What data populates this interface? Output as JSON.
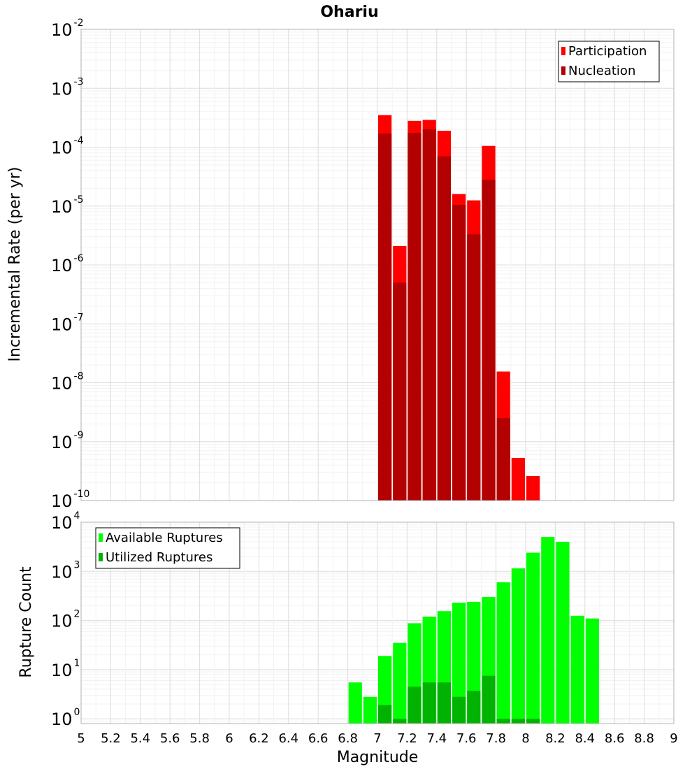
{
  "chart_data": [
    {
      "type": "bar",
      "title": "Ohariu",
      "ylabel": "Incremental Rate (per yr)",
      "xlabel": "",
      "yscale": "log",
      "ylim": [
        1e-10,
        0.01
      ],
      "xlim": [
        5,
        9
      ],
      "grid": true,
      "legend_position": "top-right",
      "y_ticks": [
        {
          "base": "10",
          "exp": "-2"
        },
        {
          "base": "10",
          "exp": "-3"
        },
        {
          "base": "10",
          "exp": "-4"
        },
        {
          "base": "10",
          "exp": "-5"
        },
        {
          "base": "10",
          "exp": "-6"
        },
        {
          "base": "10",
          "exp": "-7"
        },
        {
          "base": "10",
          "exp": "-8"
        },
        {
          "base": "10",
          "exp": "-9"
        },
        {
          "base": "10",
          "exp": "-10"
        }
      ],
      "x": [
        7.05,
        7.15,
        7.25,
        7.35,
        7.45,
        7.55,
        7.65,
        7.75,
        7.85,
        7.95,
        8.05
      ],
      "series": [
        {
          "name": "Participation",
          "color": "#ff0000",
          "values": [
            0.00035,
            2.1e-06,
            0.00028,
            0.00029,
            0.00019,
            1.6e-05,
            1.25e-05,
            0.000105,
            1.55e-08,
            5.3e-10,
            2.6e-10
          ]
        },
        {
          "name": "Nucleation",
          "color": "#b30000",
          "values": [
            0.00017,
            5e-07,
            0.000175,
            0.0002,
            7e-05,
            1.05e-05,
            3.3e-06,
            2.8e-05,
            2.5e-09,
            null,
            null
          ]
        }
      ]
    },
    {
      "type": "bar",
      "title": "",
      "ylabel": "Rupture Count",
      "xlabel": "Magnitude",
      "yscale": "log",
      "ylim": [
        0.8,
        10000
      ],
      "xlim": [
        5,
        9
      ],
      "grid": true,
      "legend_position": "top-left",
      "y_ticks": [
        {
          "base": "10",
          "exp": "4"
        },
        {
          "base": "10",
          "exp": "3"
        },
        {
          "base": "10",
          "exp": "2"
        },
        {
          "base": "10",
          "exp": "1"
        },
        {
          "base": "10",
          "exp": "0"
        }
      ],
      "x_tick_labels": [
        "5",
        "5.2",
        "5.4",
        "5.6",
        "5.8",
        "6",
        "6.2",
        "6.4",
        "6.6",
        "6.8",
        "7",
        "7.2",
        "7.4",
        "7.6",
        "7.8",
        "8",
        "8.2",
        "8.4",
        "8.6",
        "8.8",
        "9"
      ],
      "x": [
        6.85,
        6.95,
        7.05,
        7.15,
        7.25,
        7.35,
        7.45,
        7.55,
        7.65,
        7.75,
        7.85,
        7.95,
        8.05,
        8.15,
        8.25,
        8.35,
        8.45
      ],
      "series": [
        {
          "name": "Available Ruptures",
          "color": "#00ff00",
          "values": [
            5.5,
            2.8,
            19,
            35,
            88,
            120,
            155,
            230,
            240,
            300,
            600,
            1150,
            2400,
            5000,
            4000,
            125,
            110
          ]
        },
        {
          "name": "Utilized Ruptures",
          "color": "#00b300",
          "values": [
            null,
            null,
            1.9,
            1.0,
            4.5,
            5.5,
            5.5,
            2.8,
            3.7,
            7.5,
            1.0,
            1.0,
            1.0,
            null,
            null,
            null,
            null
          ]
        }
      ]
    }
  ]
}
